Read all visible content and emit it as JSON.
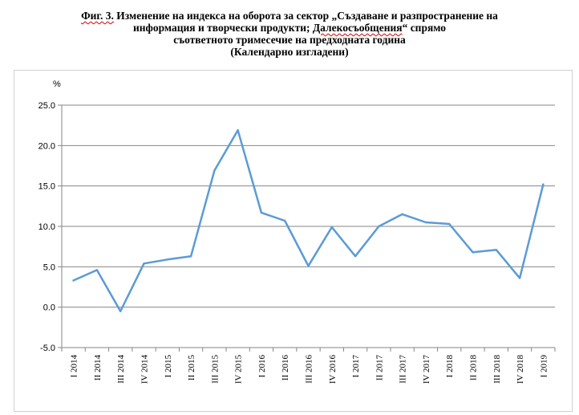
{
  "title": {
    "fig_prefix": "Фиг. 3.",
    "line1_rest": " Изменение на индекса на оборота за сектор „Създаване и разпространение на",
    "line2_a": "информация и творчески продукти; ",
    "line2_b": "Далекосъобщения",
    "line2_c": "“ спрямо",
    "line3": "съответното тримесечие на предходната година",
    "line4": "(Календарно изгладени)"
  },
  "chart_data": {
    "type": "line",
    "ylabel": "%",
    "ylim": [
      -5.0,
      25.0
    ],
    "y_ticks": [
      "25.0",
      "20.0",
      "15.0",
      "10.0",
      "5.0",
      "0.0",
      "-5.0"
    ],
    "y_tick_values": [
      25,
      20,
      15,
      10,
      5,
      0,
      -5
    ],
    "grid": true,
    "categories": [
      "I 2014",
      "II 2014",
      "III 2014",
      "IV 2014",
      "I 2015",
      "II 2015",
      "III 2015",
      "IV 2015",
      "I 2016",
      "II 2016",
      "III 2016",
      "IV 2016",
      "I 2017",
      "II 2017",
      "III 2017",
      "IV 2017",
      "I 2018",
      "II 2018",
      "III 2018",
      "IV 2018",
      "I 2019"
    ],
    "series": [
      {
        "values": [
          3.3,
          4.6,
          -0.5,
          5.4,
          5.9,
          6.3,
          16.9,
          21.9,
          11.7,
          10.7,
          5.1,
          9.9,
          6.3,
          10.0,
          11.5,
          10.5,
          10.3,
          6.8,
          7.1,
          3.6,
          15.2
        ]
      }
    ],
    "line_color": "#5b9bd5"
  }
}
